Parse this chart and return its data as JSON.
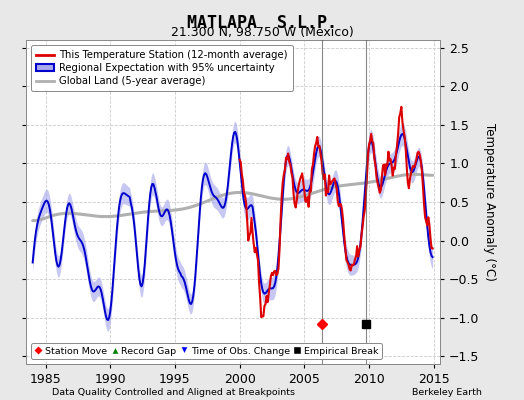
{
  "title": "MATLAPA  S.L.P.",
  "subtitle": "21.300 N, 98.750 W (Mexico)",
  "xlabel_left": "Data Quality Controlled and Aligned at Breakpoints",
  "xlabel_right": "Berkeley Earth",
  "ylabel": "Temperature Anomaly (°C)",
  "xlim": [
    1983.5,
    2015.5
  ],
  "ylim": [
    -1.6,
    2.6
  ],
  "yticks": [
    -1.5,
    -1.0,
    -0.5,
    0.0,
    0.5,
    1.0,
    1.5,
    2.0,
    2.5
  ],
  "xticks": [
    1985,
    1990,
    1995,
    2000,
    2005,
    2010,
    2015
  ],
  "outer_bg_color": "#e8e8e8",
  "plot_bg_color": "#ffffff",
  "grid_color": "#cccccc",
  "station_move_x": 2006.4,
  "station_move_y": -1.08,
  "empirical_break_x": 2009.8,
  "empirical_break_y": -1.08,
  "vertical_line_x1": 2006.4,
  "vertical_line_x2": 2009.8,
  "legend_labels": [
    "This Temperature Station (12-month average)",
    "Regional Expectation with 95% uncertainty",
    "Global Land (5-year average)"
  ],
  "station_color": "#dd0000",
  "regional_color": "#0000cc",
  "regional_fill_color": "#aaaaee",
  "global_color": "#b0b0b0",
  "title_fontsize": 12,
  "subtitle_fontsize": 9,
  "tick_fontsize": 9
}
